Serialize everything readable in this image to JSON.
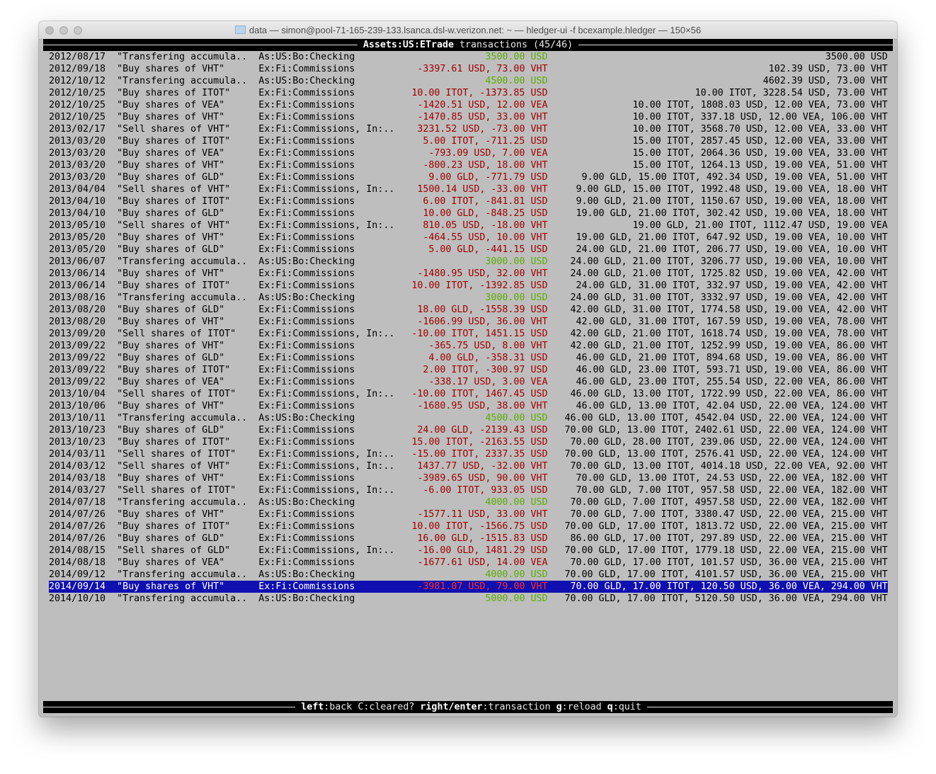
{
  "window": {
    "title": "data — simon@pool-71-165-239-133.lsanca.dsl-w.verizon.net: ~ — hledger-ui -f bcexample.hledger — 150×56"
  },
  "header": {
    "account": "Assets:US:ETrade",
    "suffix": " transactions (45/46)"
  },
  "colors": {
    "background": "#bebebe",
    "negative": "#a00000",
    "positive": "#5aae00",
    "selection": "#1010b0"
  },
  "selected_index": 44,
  "rows": [
    {
      "date": "2012/08/17",
      "desc": "\"Transfering accumula..",
      "account": "As:US:Bo:Checking",
      "amount": "3500.00 USD",
      "color": "green",
      "balance": "3500.00 USD"
    },
    {
      "date": "2012/09/18",
      "desc": "\"Buy shares of VHT\"",
      "account": "Ex:Fi:Commissions",
      "amount": "-3397.61 USD, 73.00 VHT",
      "color": "red",
      "balance": "102.39 USD, 73.00 VHT"
    },
    {
      "date": "2012/10/12",
      "desc": "\"Transfering accumula..",
      "account": "As:US:Bo:Checking",
      "amount": "4500.00 USD",
      "color": "green",
      "balance": "4602.39 USD, 73.00 VHT"
    },
    {
      "date": "2012/10/25",
      "desc": "\"Buy shares of ITOT\"",
      "account": "Ex:Fi:Commissions",
      "amount": "10.00 ITOT, -1373.85 USD",
      "color": "red",
      "balance": "10.00 ITOT, 3228.54 USD, 73.00 VHT"
    },
    {
      "date": "2012/10/25",
      "desc": "\"Buy shares of VEA\"",
      "account": "Ex:Fi:Commissions",
      "amount": "-1420.51 USD, 12.00 VEA",
      "color": "red",
      "balance": "10.00 ITOT, 1808.03 USD, 12.00 VEA, 73.00 VHT"
    },
    {
      "date": "2012/10/25",
      "desc": "\"Buy shares of VHT\"",
      "account": "Ex:Fi:Commissions",
      "amount": "-1470.85 USD, 33.00 VHT",
      "color": "red",
      "balance": "10.00 ITOT, 337.18 USD, 12.00 VEA, 106.00 VHT"
    },
    {
      "date": "2013/02/17",
      "desc": "\"Sell shares of VHT\"",
      "account": "Ex:Fi:Commissions, In:..",
      "amount": "3231.52 USD, -73.00 VHT",
      "color": "red",
      "balance": "10.00 ITOT, 3568.70 USD, 12.00 VEA, 33.00 VHT"
    },
    {
      "date": "2013/03/20",
      "desc": "\"Buy shares of ITOT\"",
      "account": "Ex:Fi:Commissions",
      "amount": "5.00 ITOT, -711.25 USD",
      "color": "red",
      "balance": "15.00 ITOT, 2857.45 USD, 12.00 VEA, 33.00 VHT"
    },
    {
      "date": "2013/03/20",
      "desc": "\"Buy shares of VEA\"",
      "account": "Ex:Fi:Commissions",
      "amount": "-793.09 USD, 7.00 VEA",
      "color": "red",
      "balance": "15.00 ITOT, 2064.36 USD, 19.00 VEA, 33.00 VHT"
    },
    {
      "date": "2013/03/20",
      "desc": "\"Buy shares of VHT\"",
      "account": "Ex:Fi:Commissions",
      "amount": "-800.23 USD, 18.00 VHT",
      "color": "red",
      "balance": "15.00 ITOT, 1264.13 USD, 19.00 VEA, 51.00 VHT"
    },
    {
      "date": "2013/03/20",
      "desc": "\"Buy shares of GLD\"",
      "account": "Ex:Fi:Commissions",
      "amount": "9.00 GLD, -771.79 USD",
      "color": "red",
      "balance": "9.00 GLD, 15.00 ITOT, 492.34 USD, 19.00 VEA, 51.00 VHT"
    },
    {
      "date": "2013/04/04",
      "desc": "\"Sell shares of VHT\"",
      "account": "Ex:Fi:Commissions, In:..",
      "amount": "1500.14 USD, -33.00 VHT",
      "color": "red",
      "balance": "9.00 GLD, 15.00 ITOT, 1992.48 USD, 19.00 VEA, 18.00 VHT"
    },
    {
      "date": "2013/04/10",
      "desc": "\"Buy shares of ITOT\"",
      "account": "Ex:Fi:Commissions",
      "amount": "6.00 ITOT, -841.81 USD",
      "color": "red",
      "balance": "9.00 GLD, 21.00 ITOT, 1150.67 USD, 19.00 VEA, 18.00 VHT"
    },
    {
      "date": "2013/04/10",
      "desc": "\"Buy shares of GLD\"",
      "account": "Ex:Fi:Commissions",
      "amount": "10.00 GLD, -848.25 USD",
      "color": "red",
      "balance": "19.00 GLD, 21.00 ITOT, 302.42 USD, 19.00 VEA, 18.00 VHT"
    },
    {
      "date": "2013/05/10",
      "desc": "\"Sell shares of VHT\"",
      "account": "Ex:Fi:Commissions, In:..",
      "amount": "810.05 USD, -18.00 VHT",
      "color": "red",
      "balance": "19.00 GLD, 21.00 ITOT, 1112.47 USD, 19.00 VEA"
    },
    {
      "date": "2013/05/20",
      "desc": "\"Buy shares of VHT\"",
      "account": "Ex:Fi:Commissions",
      "amount": "-464.55 USD, 10.00 VHT",
      "color": "red",
      "balance": "19.00 GLD, 21.00 ITOT, 647.92 USD, 19.00 VEA, 10.00 VHT"
    },
    {
      "date": "2013/05/20",
      "desc": "\"Buy shares of GLD\"",
      "account": "Ex:Fi:Commissions",
      "amount": "5.00 GLD, -441.15 USD",
      "color": "red",
      "balance": "24.00 GLD, 21.00 ITOT, 206.77 USD, 19.00 VEA, 10.00 VHT"
    },
    {
      "date": "2013/06/07",
      "desc": "\"Transfering accumula..",
      "account": "As:US:Bo:Checking",
      "amount": "3000.00 USD",
      "color": "green",
      "balance": "24.00 GLD, 21.00 ITOT, 3206.77 USD, 19.00 VEA, 10.00 VHT"
    },
    {
      "date": "2013/06/14",
      "desc": "\"Buy shares of VHT\"",
      "account": "Ex:Fi:Commissions",
      "amount": "-1480.95 USD, 32.00 VHT",
      "color": "red",
      "balance": "24.00 GLD, 21.00 ITOT, 1725.82 USD, 19.00 VEA, 42.00 VHT"
    },
    {
      "date": "2013/06/14",
      "desc": "\"Buy shares of ITOT\"",
      "account": "Ex:Fi:Commissions",
      "amount": "10.00 ITOT, -1392.85 USD",
      "color": "red",
      "balance": "24.00 GLD, 31.00 ITOT, 332.97 USD, 19.00 VEA, 42.00 VHT"
    },
    {
      "date": "2013/08/16",
      "desc": "\"Transfering accumula..",
      "account": "As:US:Bo:Checking",
      "amount": "3000.00 USD",
      "color": "green",
      "balance": "24.00 GLD, 31.00 ITOT, 3332.97 USD, 19.00 VEA, 42.00 VHT"
    },
    {
      "date": "2013/08/20",
      "desc": "\"Buy shares of GLD\"",
      "account": "Ex:Fi:Commissions",
      "amount": "18.00 GLD, -1558.39 USD",
      "color": "red",
      "balance": "42.00 GLD, 31.00 ITOT, 1774.58 USD, 19.00 VEA, 42.00 VHT"
    },
    {
      "date": "2013/08/20",
      "desc": "\"Buy shares of VHT\"",
      "account": "Ex:Fi:Commissions",
      "amount": "-1606.99 USD, 36.00 VHT",
      "color": "red",
      "balance": "42.00 GLD, 31.00 ITOT, 167.59 USD, 19.00 VEA, 78.00 VHT"
    },
    {
      "date": "2013/09/20",
      "desc": "\"Sell shares of ITOT\"",
      "account": "Ex:Fi:Commissions, In:..",
      "amount": "-10.00 ITOT, 1451.15 USD",
      "color": "red",
      "balance": "42.00 GLD, 21.00 ITOT, 1618.74 USD, 19.00 VEA, 78.00 VHT"
    },
    {
      "date": "2013/09/22",
      "desc": "\"Buy shares of VHT\"",
      "account": "Ex:Fi:Commissions",
      "amount": "-365.75 USD, 8.00 VHT",
      "color": "red",
      "balance": "42.00 GLD, 21.00 ITOT, 1252.99 USD, 19.00 VEA, 86.00 VHT"
    },
    {
      "date": "2013/09/22",
      "desc": "\"Buy shares of GLD\"",
      "account": "Ex:Fi:Commissions",
      "amount": "4.00 GLD, -358.31 USD",
      "color": "red",
      "balance": "46.00 GLD, 21.00 ITOT, 894.68 USD, 19.00 VEA, 86.00 VHT"
    },
    {
      "date": "2013/09/22",
      "desc": "\"Buy shares of ITOT\"",
      "account": "Ex:Fi:Commissions",
      "amount": "2.00 ITOT, -300.97 USD",
      "color": "red",
      "balance": "46.00 GLD, 23.00 ITOT, 593.71 USD, 19.00 VEA, 86.00 VHT"
    },
    {
      "date": "2013/09/22",
      "desc": "\"Buy shares of VEA\"",
      "account": "Ex:Fi:Commissions",
      "amount": "-338.17 USD, 3.00 VEA",
      "color": "red",
      "balance": "46.00 GLD, 23.00 ITOT, 255.54 USD, 22.00 VEA, 86.00 VHT"
    },
    {
      "date": "2013/10/04",
      "desc": "\"Sell shares of ITOT\"",
      "account": "Ex:Fi:Commissions, In:..",
      "amount": "-10.00 ITOT, 1467.45 USD",
      "color": "red",
      "balance": "46.00 GLD, 13.00 ITOT, 1722.99 USD, 22.00 VEA, 86.00 VHT"
    },
    {
      "date": "2013/10/06",
      "desc": "\"Buy shares of VHT\"",
      "account": "Ex:Fi:Commissions",
      "amount": "-1680.95 USD, 38.00 VHT",
      "color": "red",
      "balance": "46.00 GLD, 13.00 ITOT, 42.04 USD, 22.00 VEA, 124.00 VHT"
    },
    {
      "date": "2013/10/11",
      "desc": "\"Transfering accumula..",
      "account": "As:US:Bo:Checking",
      "amount": "4500.00 USD",
      "color": "green",
      "balance": "46.00 GLD, 13.00 ITOT, 4542.04 USD, 22.00 VEA, 124.00 VHT"
    },
    {
      "date": "2013/10/23",
      "desc": "\"Buy shares of GLD\"",
      "account": "Ex:Fi:Commissions",
      "amount": "24.00 GLD, -2139.43 USD",
      "color": "red",
      "balance": "70.00 GLD, 13.00 ITOT, 2402.61 USD, 22.00 VEA, 124.00 VHT"
    },
    {
      "date": "2013/10/23",
      "desc": "\"Buy shares of ITOT\"",
      "account": "Ex:Fi:Commissions",
      "amount": "15.00 ITOT, -2163.55 USD",
      "color": "red",
      "balance": "70.00 GLD, 28.00 ITOT, 239.06 USD, 22.00 VEA, 124.00 VHT"
    },
    {
      "date": "2014/03/11",
      "desc": "\"Sell shares of ITOT\"",
      "account": "Ex:Fi:Commissions, In:..",
      "amount": "-15.00 ITOT, 2337.35 USD",
      "color": "red",
      "balance": "70.00 GLD, 13.00 ITOT, 2576.41 USD, 22.00 VEA, 124.00 VHT"
    },
    {
      "date": "2014/03/12",
      "desc": "\"Sell shares of VHT\"",
      "account": "Ex:Fi:Commissions, In:..",
      "amount": "1437.77 USD, -32.00 VHT",
      "color": "red",
      "balance": "70.00 GLD, 13.00 ITOT, 4014.18 USD, 22.00 VEA, 92.00 VHT"
    },
    {
      "date": "2014/03/18",
      "desc": "\"Buy shares of VHT\"",
      "account": "Ex:Fi:Commissions",
      "amount": "-3989.65 USD, 90.00 VHT",
      "color": "red",
      "balance": "70.00 GLD, 13.00 ITOT, 24.53 USD, 22.00 VEA, 182.00 VHT"
    },
    {
      "date": "2014/03/27",
      "desc": "\"Sell shares of ITOT\"",
      "account": "Ex:Fi:Commissions, In:..",
      "amount": "-6.00 ITOT, 933.05 USD",
      "color": "red",
      "balance": "70.00 GLD, 7.00 ITOT, 957.58 USD, 22.00 VEA, 182.00 VHT"
    },
    {
      "date": "2014/07/18",
      "desc": "\"Transfering accumula..",
      "account": "As:US:Bo:Checking",
      "amount": "4000.00 USD",
      "color": "green",
      "balance": "70.00 GLD, 7.00 ITOT, 4957.58 USD, 22.00 VEA, 182.00 VHT"
    },
    {
      "date": "2014/07/26",
      "desc": "\"Buy shares of VHT\"",
      "account": "Ex:Fi:Commissions",
      "amount": "-1577.11 USD, 33.00 VHT",
      "color": "red",
      "balance": "70.00 GLD, 7.00 ITOT, 3380.47 USD, 22.00 VEA, 215.00 VHT"
    },
    {
      "date": "2014/07/26",
      "desc": "\"Buy shares of ITOT\"",
      "account": "Ex:Fi:Commissions",
      "amount": "10.00 ITOT, -1566.75 USD",
      "color": "red",
      "balance": "70.00 GLD, 17.00 ITOT, 1813.72 USD, 22.00 VEA, 215.00 VHT"
    },
    {
      "date": "2014/07/26",
      "desc": "\"Buy shares of GLD\"",
      "account": "Ex:Fi:Commissions",
      "amount": "16.00 GLD, -1515.83 USD",
      "color": "red",
      "balance": "86.00 GLD, 17.00 ITOT, 297.89 USD, 22.00 VEA, 215.00 VHT"
    },
    {
      "date": "2014/08/15",
      "desc": "\"Sell shares of GLD\"",
      "account": "Ex:Fi:Commissions, In:..",
      "amount": "-16.00 GLD, 1481.29 USD",
      "color": "red",
      "balance": "70.00 GLD, 17.00 ITOT, 1779.18 USD, 22.00 VEA, 215.00 VHT"
    },
    {
      "date": "2014/08/18",
      "desc": "\"Buy shares of VEA\"",
      "account": "Ex:Fi:Commissions",
      "amount": "-1677.61 USD, 14.00 VEA",
      "color": "red",
      "balance": "70.00 GLD, 17.00 ITOT, 101.57 USD, 36.00 VEA, 215.00 VHT"
    },
    {
      "date": "2014/09/12",
      "desc": "\"Transfering accumula..",
      "account": "As:US:Bo:Checking",
      "amount": "4000.00 USD",
      "color": "green",
      "balance": "70.00 GLD, 17.00 ITOT, 4101.57 USD, 36.00 VEA, 215.00 VHT"
    },
    {
      "date": "2014/09/14",
      "desc": "\"Buy shares of VHT\"",
      "account": "Ex:Fi:Commissions",
      "amount": "-3981.07 USD, 79.00 VHT",
      "color": "red",
      "balance": "70.00 GLD, 17.00 ITOT, 120.50 USD, 36.00 VEA, 294.00 VHT"
    },
    {
      "date": "2014/10/10",
      "desc": "\"Transfering accumula..",
      "account": "As:US:Bo:Checking",
      "amount": "5000.00 USD",
      "color": "green",
      "balance": "70.00 GLD, 17.00 ITOT, 5120.50 USD, 36.00 VEA, 294.00 VHT"
    }
  ],
  "footer": {
    "hints": [
      {
        "key": "left",
        "label": "back",
        "bold": true
      },
      {
        "key": "C",
        "label": "cleared?",
        "bold": false
      },
      {
        "key": "right/enter",
        "label": "transaction",
        "bold": true
      },
      {
        "key": "g",
        "label": "reload",
        "bold": true
      },
      {
        "key": "q",
        "label": "quit",
        "bold": true
      }
    ]
  }
}
